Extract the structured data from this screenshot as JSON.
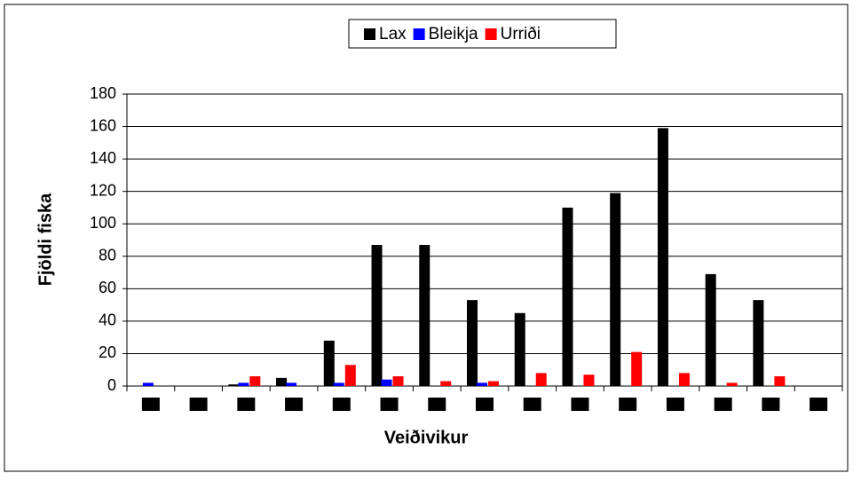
{
  "chart_data": {
    "type": "bar",
    "categories": [
      null,
      null,
      null,
      null,
      null,
      null,
      null,
      null,
      null,
      null,
      null,
      null,
      null,
      null,
      null
    ],
    "series": [
      {
        "name": "Lax",
        "color": "#000000",
        "values": [
          0,
          0,
          1,
          5,
          28,
          87,
          87,
          53,
          45,
          110,
          119,
          159,
          69,
          53,
          0
        ]
      },
      {
        "name": "Bleikja",
        "color": "#0000ff",
        "values": [
          2,
          0,
          2,
          2,
          2,
          4,
          0,
          2,
          0,
          0,
          0,
          0,
          0,
          0,
          0
        ]
      },
      {
        "name": "Urriði",
        "color": "#ff0000",
        "values": [
          0,
          0,
          6,
          0,
          13,
          6,
          3,
          3,
          8,
          7,
          21,
          8,
          2,
          6,
          0
        ]
      }
    ],
    "ylabel": "Fjöldi fiska",
    "xlabel": "Veiðivikur",
    "ylim": [
      0,
      180
    ],
    "yticks": [
      0,
      20,
      40,
      60,
      80,
      100,
      120,
      140,
      160,
      180
    ],
    "grid": true,
    "legend": "top"
  }
}
